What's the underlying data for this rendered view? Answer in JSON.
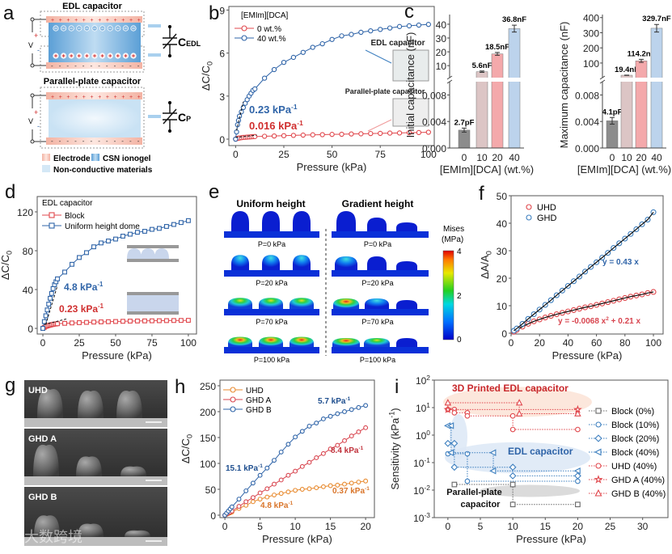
{
  "panel_labels": {
    "a": "a",
    "b": "b",
    "c": "c",
    "d": "d",
    "e": "e",
    "f": "f",
    "g": "g",
    "h": "h",
    "i": "i"
  },
  "panel_a": {
    "edl_title": "EDL capacitor",
    "pp_title": "Parallel-plate capacitor",
    "cedl_label": "C",
    "cedl_sub": "EDL",
    "cp_label": "C",
    "cp_sub": "P",
    "v_label": "V",
    "plus": "+",
    "minus": "-",
    "legend": [
      "Electrode",
      "CSN ionogel",
      "Non-conductive materials"
    ],
    "colors": {
      "electrode": "#f6c2b4",
      "ionogel": "#6aa8da",
      "nonconductive": "#d4e8f6"
    }
  },
  "panel_e": {
    "col1_title": "Uniform height",
    "col2_title": "Gradient height",
    "pressures": [
      "P=0 kPa",
      "P=20 kPa",
      "P=70 kPa",
      "P=100 kPa"
    ],
    "colorbar_title": "Mises",
    "colorbar_unit": "(MPa)",
    "colorbar_ticks": [
      "4",
      "2",
      "0"
    ]
  },
  "panel_g": {
    "labels": [
      "UHD",
      "GHD A",
      "GHD B"
    ]
  },
  "watermark": "大数跨境",
  "chart_data": [
    {
      "id": "b",
      "type": "line",
      "xlabel": "Pressure (kPa)",
      "ylabel": "ΔC/C_{0}",
      "xlim": [
        -3.5,
        103
      ],
      "ylim": [
        -0.45,
        9.25
      ],
      "xticks": [
        0,
        25,
        50,
        75,
        100
      ],
      "yticks": [
        0,
        3,
        6,
        9
      ],
      "legend_title": "[EMIm][DCA]",
      "series": [
        {
          "name": "0 wt.%",
          "color": "#e0474c",
          "marker": "circle",
          "x": [
            0,
            0.5,
            1,
            1.5,
            2,
            3,
            4,
            5,
            6,
            7,
            8,
            9,
            10,
            15,
            20,
            25,
            30,
            35,
            40,
            45,
            50,
            55,
            60,
            65,
            70,
            75,
            80,
            85,
            90,
            95,
            100
          ],
          "y": [
            0,
            0.03,
            0.05,
            0.07,
            0.08,
            0.1,
            0.12,
            0.13,
            0.14,
            0.15,
            0.16,
            0.17,
            0.18,
            0.2,
            0.22,
            0.24,
            0.26,
            0.28,
            0.3,
            0.31,
            0.33,
            0.34,
            0.36,
            0.37,
            0.39,
            0.4,
            0.42,
            0.43,
            0.45,
            0.46,
            0.48
          ]
        },
        {
          "name": "40 wt.%",
          "color": "#2f64a8",
          "marker": "circle",
          "x": [
            0,
            0.5,
            1,
            1.5,
            2,
            3,
            4,
            5,
            6,
            7,
            8,
            9,
            10,
            15,
            20,
            25,
            30,
            35,
            40,
            45,
            50,
            55,
            60,
            65,
            70,
            75,
            80,
            85,
            90,
            95,
            100
          ],
          "y": [
            0,
            0.5,
            1.0,
            1.3,
            1.6,
            1.9,
            2.2,
            2.5,
            2.75,
            3.0,
            3.2,
            3.4,
            3.5,
            4.25,
            4.85,
            5.35,
            5.7,
            6.05,
            6.4,
            6.65,
            6.95,
            7.2,
            7.3,
            7.45,
            7.55,
            7.65,
            7.75,
            7.85,
            7.9,
            7.95,
            8.0
          ]
        }
      ],
      "annotations": [
        {
          "text": "0.23 kPa^{-1}",
          "color": "#2f64a8"
        },
        {
          "text": "0.016 kPa^{-1}",
          "color": "#d02f2f"
        },
        {
          "text": "EDL capacitor",
          "color": "#222"
        },
        {
          "text": "Parallel-plate capacitor",
          "color": "#222"
        }
      ]
    },
    {
      "id": "c1",
      "type": "bar",
      "ylabel": "Initial capacitance (nF)",
      "xlabel": "[EMIm][DCA] (wt.%)",
      "categories": [
        "0",
        "10",
        "20",
        "40"
      ],
      "values": [
        0.0027,
        5.6,
        18.5,
        36.8
      ],
      "errors": [
        0.0003,
        0.5,
        1.0,
        2.5
      ],
      "value_labels": [
        "2.7pF",
        "5.6nF",
        "18.5nF",
        "36.8nF"
      ],
      "colors": [
        "#8c8c8c",
        "#dcc5c5",
        "#f4a9ab",
        "#bcd3ec"
      ],
      "lower_ylim": [
        0,
        0.01
      ],
      "lower_ticks": [
        0,
        0.004,
        0.008
      ],
      "lower_tick_labels": [
        "0.000",
        "0.004",
        "0.008"
      ],
      "upper_ylim": [
        1.3,
        47
      ],
      "upper_ticks": [
        10,
        20,
        30,
        40
      ],
      "upper_tick_labels": [
        "10",
        "20",
        "30",
        "40"
      ]
    },
    {
      "id": "c2",
      "type": "bar",
      "ylabel": "Maximum capacitance (nF)",
      "xlabel": "[EMIm][DCA] (wt.%)",
      "categories": [
        "0",
        "10",
        "20",
        "40"
      ],
      "values": [
        0.0041,
        19.4,
        114.2,
        329.7
      ],
      "errors": [
        0.0005,
        1.0,
        10,
        25
      ],
      "value_labels": [
        "4.1pF",
        "19.4nF",
        "114.2nF",
        "329.7nF"
      ],
      "colors": [
        "#8c8c8c",
        "#dcc5c5",
        "#f4a9ab",
        "#bcd3ec"
      ],
      "lower_ylim": [
        0,
        0.01
      ],
      "lower_ticks": [
        0,
        0.004,
        0.008
      ],
      "lower_tick_labels": [
        "0.000",
        "0.004",
        "0.008"
      ],
      "upper_ylim": [
        3.5,
        420
      ],
      "upper_ticks": [
        100,
        200,
        300,
        400
      ],
      "upper_tick_labels": [
        "100",
        "200",
        "300",
        "400"
      ]
    },
    {
      "id": "d",
      "type": "line",
      "xlabel": "Pressure (kPa)",
      "ylabel": "ΔC/C_{0}",
      "xlim": [
        -3.9,
        105.6
      ],
      "ylim": [
        -5.8,
        135.8
      ],
      "xticks": [
        0,
        25,
        50,
        75,
        100
      ],
      "yticks": [
        0,
        40,
        80,
        120
      ],
      "legend_title": "EDL capacitor",
      "series": [
        {
          "name": "Block",
          "color": "#e0474c",
          "marker": "square",
          "x": [
            0,
            1,
            2,
            3,
            4,
            5,
            6,
            7,
            8,
            9,
            10,
            15,
            20,
            25,
            30,
            35,
            40,
            45,
            50,
            55,
            60,
            65,
            70,
            75,
            80,
            85,
            90,
            95,
            100
          ],
          "y": [
            0,
            1,
            2,
            2.5,
            3,
            3.4,
            3.8,
            4.1,
            4.4,
            4.6,
            4.8,
            5.2,
            5.6,
            5.9,
            6.2,
            6.5,
            6.7,
            6.9,
            7.1,
            7.3,
            7.5,
            7.6,
            7.7,
            7.8,
            7.9,
            8.0,
            8.1,
            8.2,
            8.3
          ]
        },
        {
          "name": "Uniform height dome",
          "color": "#2f64a8",
          "marker": "square",
          "x": [
            0,
            1,
            2,
            3,
            4,
            5,
            6,
            7,
            8,
            9,
            10,
            15,
            20,
            25,
            30,
            35,
            40,
            45,
            50,
            55,
            60,
            65,
            70,
            75,
            80,
            85,
            90,
            95,
            100
          ],
          "y": [
            0,
            7,
            13,
            19,
            25,
            31,
            36,
            41,
            45,
            48,
            51,
            58,
            66,
            73,
            78,
            84,
            88,
            90,
            92,
            95,
            97,
            99,
            100,
            102,
            103,
            105,
            107,
            109,
            111
          ]
        }
      ],
      "annotations": [
        {
          "text": "4.8 kPa^{-1}",
          "color": "#2f64a8"
        },
        {
          "text": "0.23 kPa^{-1}",
          "color": "#d02f2f"
        }
      ]
    },
    {
      "id": "f",
      "type": "scatter",
      "xlabel": "Pressure (kPa)",
      "ylabel": "ΔA/A_{0}",
      "xlim": [
        0,
        106.8
      ],
      "ylim": [
        -0.3,
        50
      ],
      "xticks": [
        0,
        20,
        40,
        60,
        80,
        100
      ],
      "yticks": [
        0,
        10,
        20,
        30,
        40,
        50
      ],
      "series": [
        {
          "name": "UHD",
          "color": "#e0474c",
          "marker": "circle",
          "fit": "y = -0.0068 x^{2} + 0.21 x",
          "x": [
            2,
            4,
            8,
            12,
            16,
            20,
            24,
            28,
            32,
            36,
            40,
            44,
            48,
            52,
            56,
            60,
            64,
            68,
            72,
            76,
            80,
            84,
            88,
            92,
            96,
            100
          ],
          "y": [
            0.5,
            1.2,
            2.4,
            3.4,
            4.3,
            5.0,
            5.7,
            6.3,
            6.9,
            7.4,
            7.9,
            8.4,
            8.9,
            9.4,
            9.8,
            10.3,
            10.8,
            11.3,
            11.8,
            12.3,
            12.8,
            13.3,
            13.7,
            14.1,
            14.6,
            15.0
          ]
        },
        {
          "name": "GHD",
          "color": "#3d7fbf",
          "marker": "circle",
          "fit": "y = 0.43 x",
          "x": [
            2,
            4,
            8,
            12,
            16,
            20,
            24,
            28,
            32,
            36,
            40,
            44,
            48,
            52,
            56,
            60,
            64,
            68,
            72,
            76,
            80,
            84,
            88,
            92,
            96,
            100
          ],
          "y": [
            0.9,
            1.7,
            3.4,
            5.2,
            6.9,
            8.6,
            10.3,
            12.0,
            13.8,
            15.5,
            17.2,
            18.9,
            20.6,
            22.4,
            24.1,
            25.8,
            27.5,
            29.2,
            31.0,
            32.7,
            34.4,
            36.1,
            37.8,
            39.6,
            41.3,
            44.0
          ]
        }
      ]
    },
    {
      "id": "h",
      "type": "line",
      "xlabel": "Pressure (kPa)",
      "ylabel": "ΔC/C_{0}",
      "xlim": [
        -0.7,
        21.25
      ],
      "ylim": [
        -4.7,
        260.9
      ],
      "xticks": [
        0,
        5,
        10,
        15,
        20
      ],
      "yticks": [
        0,
        50,
        100,
        150,
        200,
        250
      ],
      "series": [
        {
          "name": "UHD",
          "color": "#e88a2e",
          "marker": "circle",
          "x": [
            0,
            0.25,
            0.5,
            0.75,
            1,
            2,
            3,
            4,
            5,
            6,
            7,
            8,
            9,
            10,
            11,
            12,
            13,
            14,
            15,
            16,
            17,
            18,
            19,
            20
          ],
          "y": [
            0,
            1.5,
            3,
            4.5,
            6,
            13,
            19,
            26,
            31,
            35,
            39,
            42,
            45,
            48,
            50,
            51,
            53,
            55,
            57,
            58,
            60,
            62,
            64,
            66
          ]
        },
        {
          "name": "GHD A",
          "color": "#d8454f",
          "marker": "circle",
          "x": [
            0,
            0.25,
            0.5,
            0.75,
            1,
            2,
            3,
            4,
            5,
            6,
            7,
            8,
            9,
            10,
            11,
            12,
            13,
            14,
            15,
            16,
            17,
            18,
            19,
            20
          ],
          "y": [
            0,
            2,
            4,
            6,
            8,
            17,
            26,
            34,
            43,
            51,
            60,
            68,
            77,
            85,
            94,
            102,
            111,
            119,
            128,
            135,
            144,
            153,
            161,
            169
          ]
        },
        {
          "name": "GHD B",
          "color": "#2f64a8",
          "marker": "circle",
          "x": [
            0,
            0.25,
            0.5,
            0.75,
            1,
            2,
            3,
            4,
            5,
            6,
            7,
            8,
            9,
            10,
            11,
            12,
            13,
            14,
            15,
            16,
            17,
            18,
            19,
            20
          ],
          "y": [
            0,
            4,
            8,
            12,
            16,
            31,
            47,
            62,
            77,
            91,
            106,
            122,
            137,
            151,
            162,
            172,
            178,
            186,
            191,
            196,
            200,
            204,
            208,
            212
          ]
        }
      ],
      "annotations": [
        {
          "text": "5.7 kPa^{-1}",
          "color": "#1f4f8f"
        },
        {
          "text": "15.1 kPa^{-1}",
          "color": "#1f4f8f"
        },
        {
          "text": "8.4 kPa^{-1}",
          "color": "#c0303a"
        },
        {
          "text": "0.37 kPa^{-1}",
          "color": "#d9752a"
        },
        {
          "text": "4.8 kPa^{-1}",
          "color": "#d9752a"
        }
      ]
    },
    {
      "id": "i",
      "type": "scatter",
      "xlabel": "Pressure (kPa)",
      "ylabel": "Sensitivity (kPa^{-1})",
      "xlim": [
        -2.1,
        33.9
      ],
      "ylim_log10": [
        -3,
        2
      ],
      "yscale": "log",
      "xticks": [
        0,
        5,
        10,
        15,
        20,
        25,
        30
      ],
      "yticks": [
        0.001,
        0.01,
        0.1,
        1,
        10,
        100
      ],
      "ytick_labels": [
        "10^{-3}",
        "10^{-2}",
        "10^{-1}",
        "10^{0}",
        "10^{1}",
        "10^{2}"
      ],
      "series": [
        {
          "name": "Block (0%)",
          "color": "#666666",
          "marker": "square",
          "x": [
            1,
            10,
            10,
            20
          ],
          "y": [
            0.016,
            0.016,
            0.003,
            0.003
          ]
        },
        {
          "name": "Block (10%)",
          "color": "#3d7fbf",
          "marker": "circle",
          "x": [
            0,
            3,
            3,
            20
          ],
          "y": [
            0.21,
            0.21,
            0.021,
            0.021
          ]
        },
        {
          "name": "Block (20%)",
          "color": "#3d7fbf",
          "marker": "diamond",
          "x": [
            0,
            1,
            1,
            10,
            10,
            20
          ],
          "y": [
            0.5,
            0.5,
            0.068,
            0.068,
            0.033,
            0.033
          ]
        },
        {
          "name": "Block (40%)",
          "color": "#3d7fbf",
          "marker": "triangle-left",
          "x": [
            0,
            0.5,
            0.5,
            7,
            7,
            20
          ],
          "y": [
            2.2,
            2.2,
            0.23,
            0.23,
            0.05,
            0.05
          ]
        },
        {
          "name": "UHD (40%)",
          "color": "#e0474c",
          "marker": "circle",
          "x": [
            0,
            1,
            1,
            3,
            3,
            10,
            10,
            20
          ],
          "y": [
            8.5,
            8.5,
            6.5,
            6.5,
            5,
            5,
            1.6,
            1.6
          ]
        },
        {
          "name": "GHD A (40%)",
          "color": "#e0474c",
          "marker": "star",
          "x": [
            0,
            20
          ],
          "y": [
            8.5,
            8.5
          ]
        },
        {
          "name": "GHD B (40%)",
          "color": "#e0474c",
          "marker": "triangle-up",
          "x": [
            0,
            11,
            11,
            20
          ],
          "y": [
            15,
            15,
            6,
            6
          ]
        }
      ],
      "regions": [
        {
          "text": "3D Printed EDL capacitor",
          "color": "#c8282c",
          "fill": "#fbe3d6"
        },
        {
          "text": "EDL capacitor",
          "color": "#2f64a8",
          "fill": "#dce8f6"
        },
        {
          "text": "Parallel-plate capacitor",
          "color": "#111111",
          "fill": "#d5d5d5"
        }
      ]
    }
  ]
}
